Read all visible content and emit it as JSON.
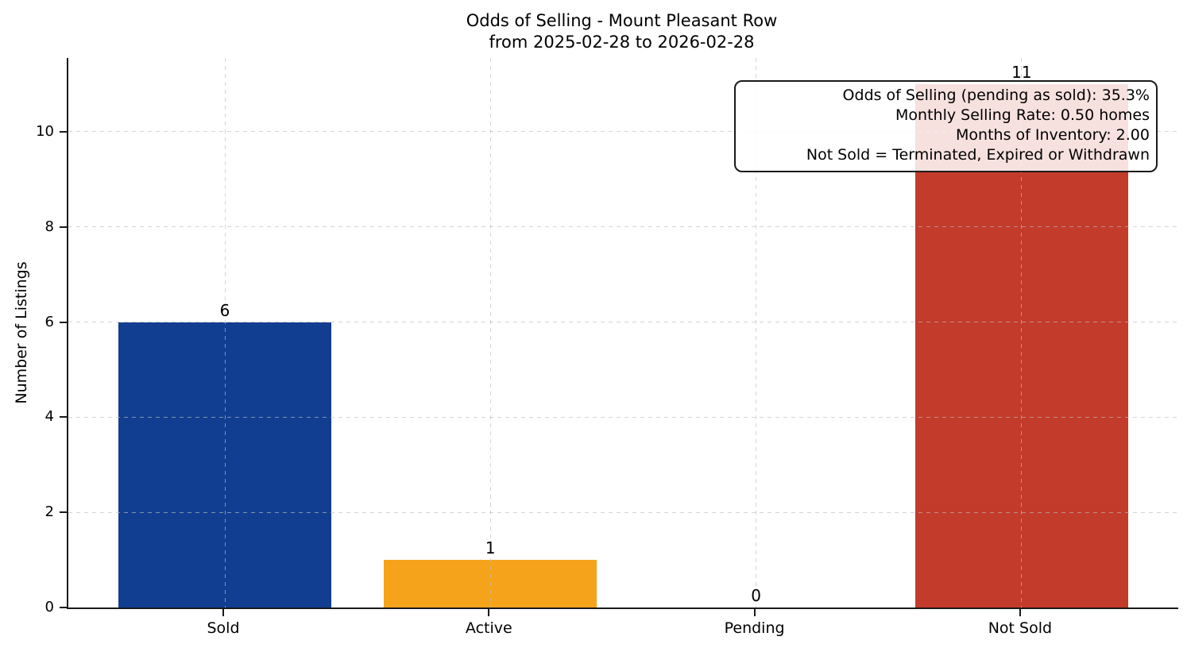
{
  "chart_data": {
    "type": "bar",
    "title": "Odds of Selling - Mount Pleasant Row",
    "subtitle": "from 2025-02-28 to 2026-02-28",
    "ylabel": "Number of Listings",
    "xlabel": "",
    "categories": [
      "Sold",
      "Active",
      "Pending",
      "Not Sold"
    ],
    "values": [
      6,
      1,
      0,
      11
    ],
    "bar_colors": [
      "#113e90",
      "#f4a31b",
      null,
      "#c23b2b"
    ],
    "yticks": [
      0,
      2,
      4,
      6,
      8,
      10
    ],
    "ylim": [
      0,
      11.55
    ],
    "grid": {
      "style": "dashed",
      "axes": "both",
      "drawn_over_bars": true
    },
    "legend_position": "none",
    "spine_color": "#1a1a1a",
    "annotation": {
      "position": "top-right",
      "lines": [
        "Odds of Selling (pending as sold): 35.3%",
        "Monthly Selling Rate: 0.50 homes",
        "Months of Inventory: 2.00",
        "Not Sold = Terminated, Expired or Withdrawn"
      ]
    }
  }
}
